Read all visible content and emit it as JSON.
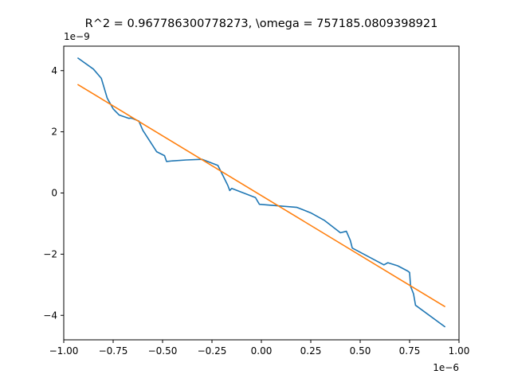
{
  "chart_data": {
    "type": "line",
    "title": "R^2 = 0.967786300778273, \\omega = 757185.0809398921",
    "xlabel": "",
    "ylabel": "",
    "x_offset_label": "1e−6",
    "y_offset_label": "1e−9",
    "xlim": [
      -1e-06,
      1e-06
    ],
    "ylim": [
      -4.8e-09,
      4.8e-09
    ],
    "x_ticks": [
      -1e-06,
      -7.5e-07,
      -5e-07,
      -2.5e-07,
      0,
      2.5e-07,
      5e-07,
      7.5e-07,
      1e-06
    ],
    "x_tick_labels": [
      "−1.00",
      "−0.75",
      "−0.50",
      "−0.25",
      "0.00",
      "0.25",
      "0.50",
      "0.75",
      "1.00"
    ],
    "y_ticks": [
      -4e-09,
      -2e-09,
      0,
      2e-09,
      4e-09
    ],
    "y_tick_labels": [
      "−4",
      "−2",
      "0",
      "2",
      "4"
    ],
    "grid": false,
    "series": [
      {
        "color": "#1f77b4",
        "points": [
          [
            -9.3e-07,
            4.42e-09
          ],
          [
            -8.5e-07,
            4.05e-09
          ],
          [
            -8.1e-07,
            3.75e-09
          ],
          [
            -7.8e-07,
            3.1e-09
          ],
          [
            -7.5e-07,
            2.75e-09
          ],
          [
            -7.2e-07,
            2.55e-09
          ],
          [
            -6.7e-07,
            2.44e-09
          ],
          [
            -6.6e-07,
            2.45e-09
          ],
          [
            -6.5e-07,
            2.43e-09
          ],
          [
            -6.2e-07,
            2.35e-09
          ],
          [
            -6e-07,
            2.05e-09
          ],
          [
            -5.3e-07,
            1.35e-09
          ],
          [
            -4.9e-07,
            1.22e-09
          ],
          [
            -4.8e-07,
            1.03e-09
          ],
          [
            -4.5e-07,
            1.05e-09
          ],
          [
            -3.8e-07,
            1.08e-09
          ],
          [
            -3e-07,
            1.1e-09
          ],
          [
            -2.2e-07,
            9e-10
          ],
          [
            -1.7e-07,
            2.5e-10
          ],
          [
            -1.6e-07,
            8e-11
          ],
          [
            -1.5e-07,
            1.5e-10
          ],
          [
            -3e-08,
            -1.5e-10
          ],
          [
            -1e-08,
            -3.7e-10
          ],
          [
            1.8e-07,
            -4.7e-10
          ],
          [
            2.5e-07,
            -6.5e-10
          ],
          [
            3.2e-07,
            -9e-10
          ],
          [
            3.5e-07,
            -1.05e-09
          ],
          [
            4e-07,
            -1.3e-09
          ],
          [
            4.3e-07,
            -1.25e-09
          ],
          [
            4.5e-07,
            -1.55e-09
          ],
          [
            4.6e-07,
            -1.8e-09
          ],
          [
            6.2e-07,
            -2.35e-09
          ],
          [
            6.4e-07,
            -2.28e-09
          ],
          [
            6.9e-07,
            -2.38e-09
          ],
          [
            7.4e-07,
            -2.55e-09
          ],
          [
            7.5e-07,
            -2.6e-09
          ],
          [
            7.55e-07,
            -3.05e-09
          ],
          [
            7.7e-07,
            -3.3e-09
          ],
          [
            7.8e-07,
            -3.67e-09
          ],
          [
            9.3e-07,
            -4.38e-09
          ]
        ]
      },
      {
        "color": "#ff7f0e",
        "points": [
          [
            -9.3e-07,
            3.55e-09
          ],
          [
            9.3e-07,
            -3.72e-09
          ]
        ]
      }
    ]
  }
}
